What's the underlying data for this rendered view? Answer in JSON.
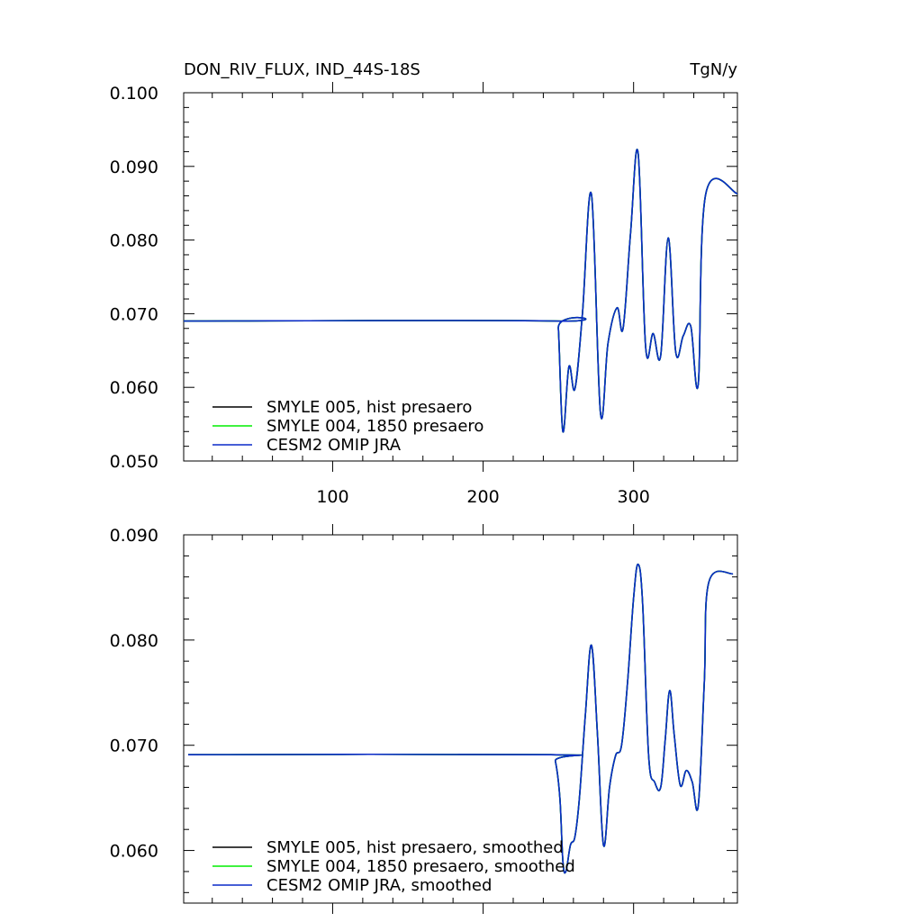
{
  "chart_data": [
    {
      "type": "line",
      "title": "DON_RIV_FLUX, IND_44S-18S",
      "units": "TgN/y",
      "xlim": [
        1,
        369
      ],
      "ylim": [
        0.05,
        0.1
      ],
      "yticks": [
        "0.050",
        "0.060",
        "0.070",
        "0.080",
        "0.090",
        "0.100"
      ],
      "xticks": [
        "100",
        "200",
        "300"
      ],
      "grid": false,
      "legend_position": "bottom-left",
      "series": [
        {
          "name": "SMYLE 005, hist presaero",
          "color": "#000000",
          "x": [
            1,
            248,
            250,
            253,
            257,
            261,
            266,
            272,
            278,
            283,
            289,
            293,
            298,
            303,
            308,
            313,
            318,
            323,
            328,
            333,
            338,
            343,
            348,
            369
          ],
          "y": [
            0.069,
            0.069,
            0.068,
            0.054,
            0.0628,
            0.0598,
            0.07,
            0.0862,
            0.0565,
            0.066,
            0.0708,
            0.068,
            0.081,
            0.0918,
            0.0655,
            0.0673,
            0.0643,
            0.0803,
            0.0648,
            0.067,
            0.0683,
            0.0605,
            0.0863,
            0.0863
          ]
        },
        {
          "name": "SMYLE 004, 1850 presaero",
          "color": "#00ee00",
          "x": [
            1,
            248,
            250,
            253,
            257,
            261,
            266,
            272,
            278,
            283,
            289,
            293,
            298,
            303,
            308,
            313,
            318,
            323,
            328,
            333,
            338,
            343,
            348,
            369
          ],
          "y": [
            0.069,
            0.069,
            0.068,
            0.054,
            0.0628,
            0.0598,
            0.07,
            0.0862,
            0.0565,
            0.066,
            0.0708,
            0.068,
            0.081,
            0.0918,
            0.0655,
            0.0673,
            0.0643,
            0.0803,
            0.0648,
            0.067,
            0.0683,
            0.0605,
            0.0863,
            0.0863
          ]
        },
        {
          "name": "CESM2 OMIP JRA",
          "color": "#0a2ac8",
          "x": [
            1,
            248,
            250,
            253,
            257,
            261,
            266,
            272,
            278,
            283,
            289,
            293,
            298,
            303,
            308,
            313,
            318,
            323,
            328,
            333,
            338,
            343,
            348,
            369
          ],
          "y": [
            0.069,
            0.069,
            0.068,
            0.054,
            0.0628,
            0.0598,
            0.07,
            0.0862,
            0.0565,
            0.066,
            0.0708,
            0.068,
            0.081,
            0.0918,
            0.0655,
            0.0673,
            0.0643,
            0.0803,
            0.0648,
            0.067,
            0.0683,
            0.0605,
            0.0863,
            0.0863
          ]
        }
      ]
    },
    {
      "type": "line",
      "title": "",
      "xlim": [
        1,
        369
      ],
      "ylim": [
        0.055,
        0.09
      ],
      "yticks": [
        "0.060",
        "0.070",
        "0.080",
        "0.090"
      ],
      "xticks": [],
      "grid": false,
      "legend_position": "bottom-left",
      "series": [
        {
          "name": "SMYLE 005, hist presaero, smoothed",
          "color": "#000000",
          "x": [
            4,
            245,
            248,
            251,
            253,
            255,
            258,
            261,
            264,
            268,
            272,
            276,
            280,
            284,
            288,
            292,
            296,
            300,
            303,
            306,
            310,
            314,
            318,
            321,
            324,
            327,
            331,
            335,
            339,
            343,
            347,
            350,
            366
          ],
          "y": [
            0.0691,
            0.0691,
            0.0685,
            0.065,
            0.059,
            0.058,
            0.0605,
            0.0613,
            0.065,
            0.073,
            0.0795,
            0.071,
            0.0605,
            0.066,
            0.069,
            0.07,
            0.076,
            0.084,
            0.0872,
            0.0835,
            0.069,
            0.0665,
            0.066,
            0.0705,
            0.0752,
            0.071,
            0.0662,
            0.0676,
            0.0665,
            0.0643,
            0.076,
            0.0855,
            0.0863
          ]
        },
        {
          "name": "SMYLE 004, 1850 presaero, smoothed",
          "color": "#00ee00",
          "x": [
            4,
            245,
            248,
            251,
            253,
            255,
            258,
            261,
            264,
            268,
            272,
            276,
            280,
            284,
            288,
            292,
            296,
            300,
            303,
            306,
            310,
            314,
            318,
            321,
            324,
            327,
            331,
            335,
            339,
            343,
            347,
            350,
            366
          ],
          "y": [
            0.0691,
            0.0691,
            0.0685,
            0.065,
            0.059,
            0.058,
            0.0605,
            0.0613,
            0.065,
            0.073,
            0.0795,
            0.071,
            0.0605,
            0.066,
            0.069,
            0.07,
            0.076,
            0.084,
            0.0872,
            0.0835,
            0.069,
            0.0665,
            0.066,
            0.0705,
            0.0752,
            0.071,
            0.0662,
            0.0676,
            0.0665,
            0.0643,
            0.076,
            0.0855,
            0.0863
          ]
        },
        {
          "name": "CESM2 OMIP JRA, smoothed",
          "color": "#0a2ac8",
          "x": [
            4,
            245,
            248,
            251,
            253,
            255,
            258,
            261,
            264,
            268,
            272,
            276,
            280,
            284,
            288,
            292,
            296,
            300,
            303,
            306,
            310,
            314,
            318,
            321,
            324,
            327,
            331,
            335,
            339,
            343,
            347,
            350,
            366
          ],
          "y": [
            0.0691,
            0.0691,
            0.0685,
            0.065,
            0.059,
            0.058,
            0.0605,
            0.0613,
            0.065,
            0.073,
            0.0795,
            0.071,
            0.0605,
            0.066,
            0.069,
            0.07,
            0.076,
            0.084,
            0.0872,
            0.0835,
            0.069,
            0.0665,
            0.066,
            0.0705,
            0.0752,
            0.071,
            0.0662,
            0.0676,
            0.0665,
            0.0643,
            0.076,
            0.0855,
            0.0863
          ]
        }
      ]
    }
  ]
}
